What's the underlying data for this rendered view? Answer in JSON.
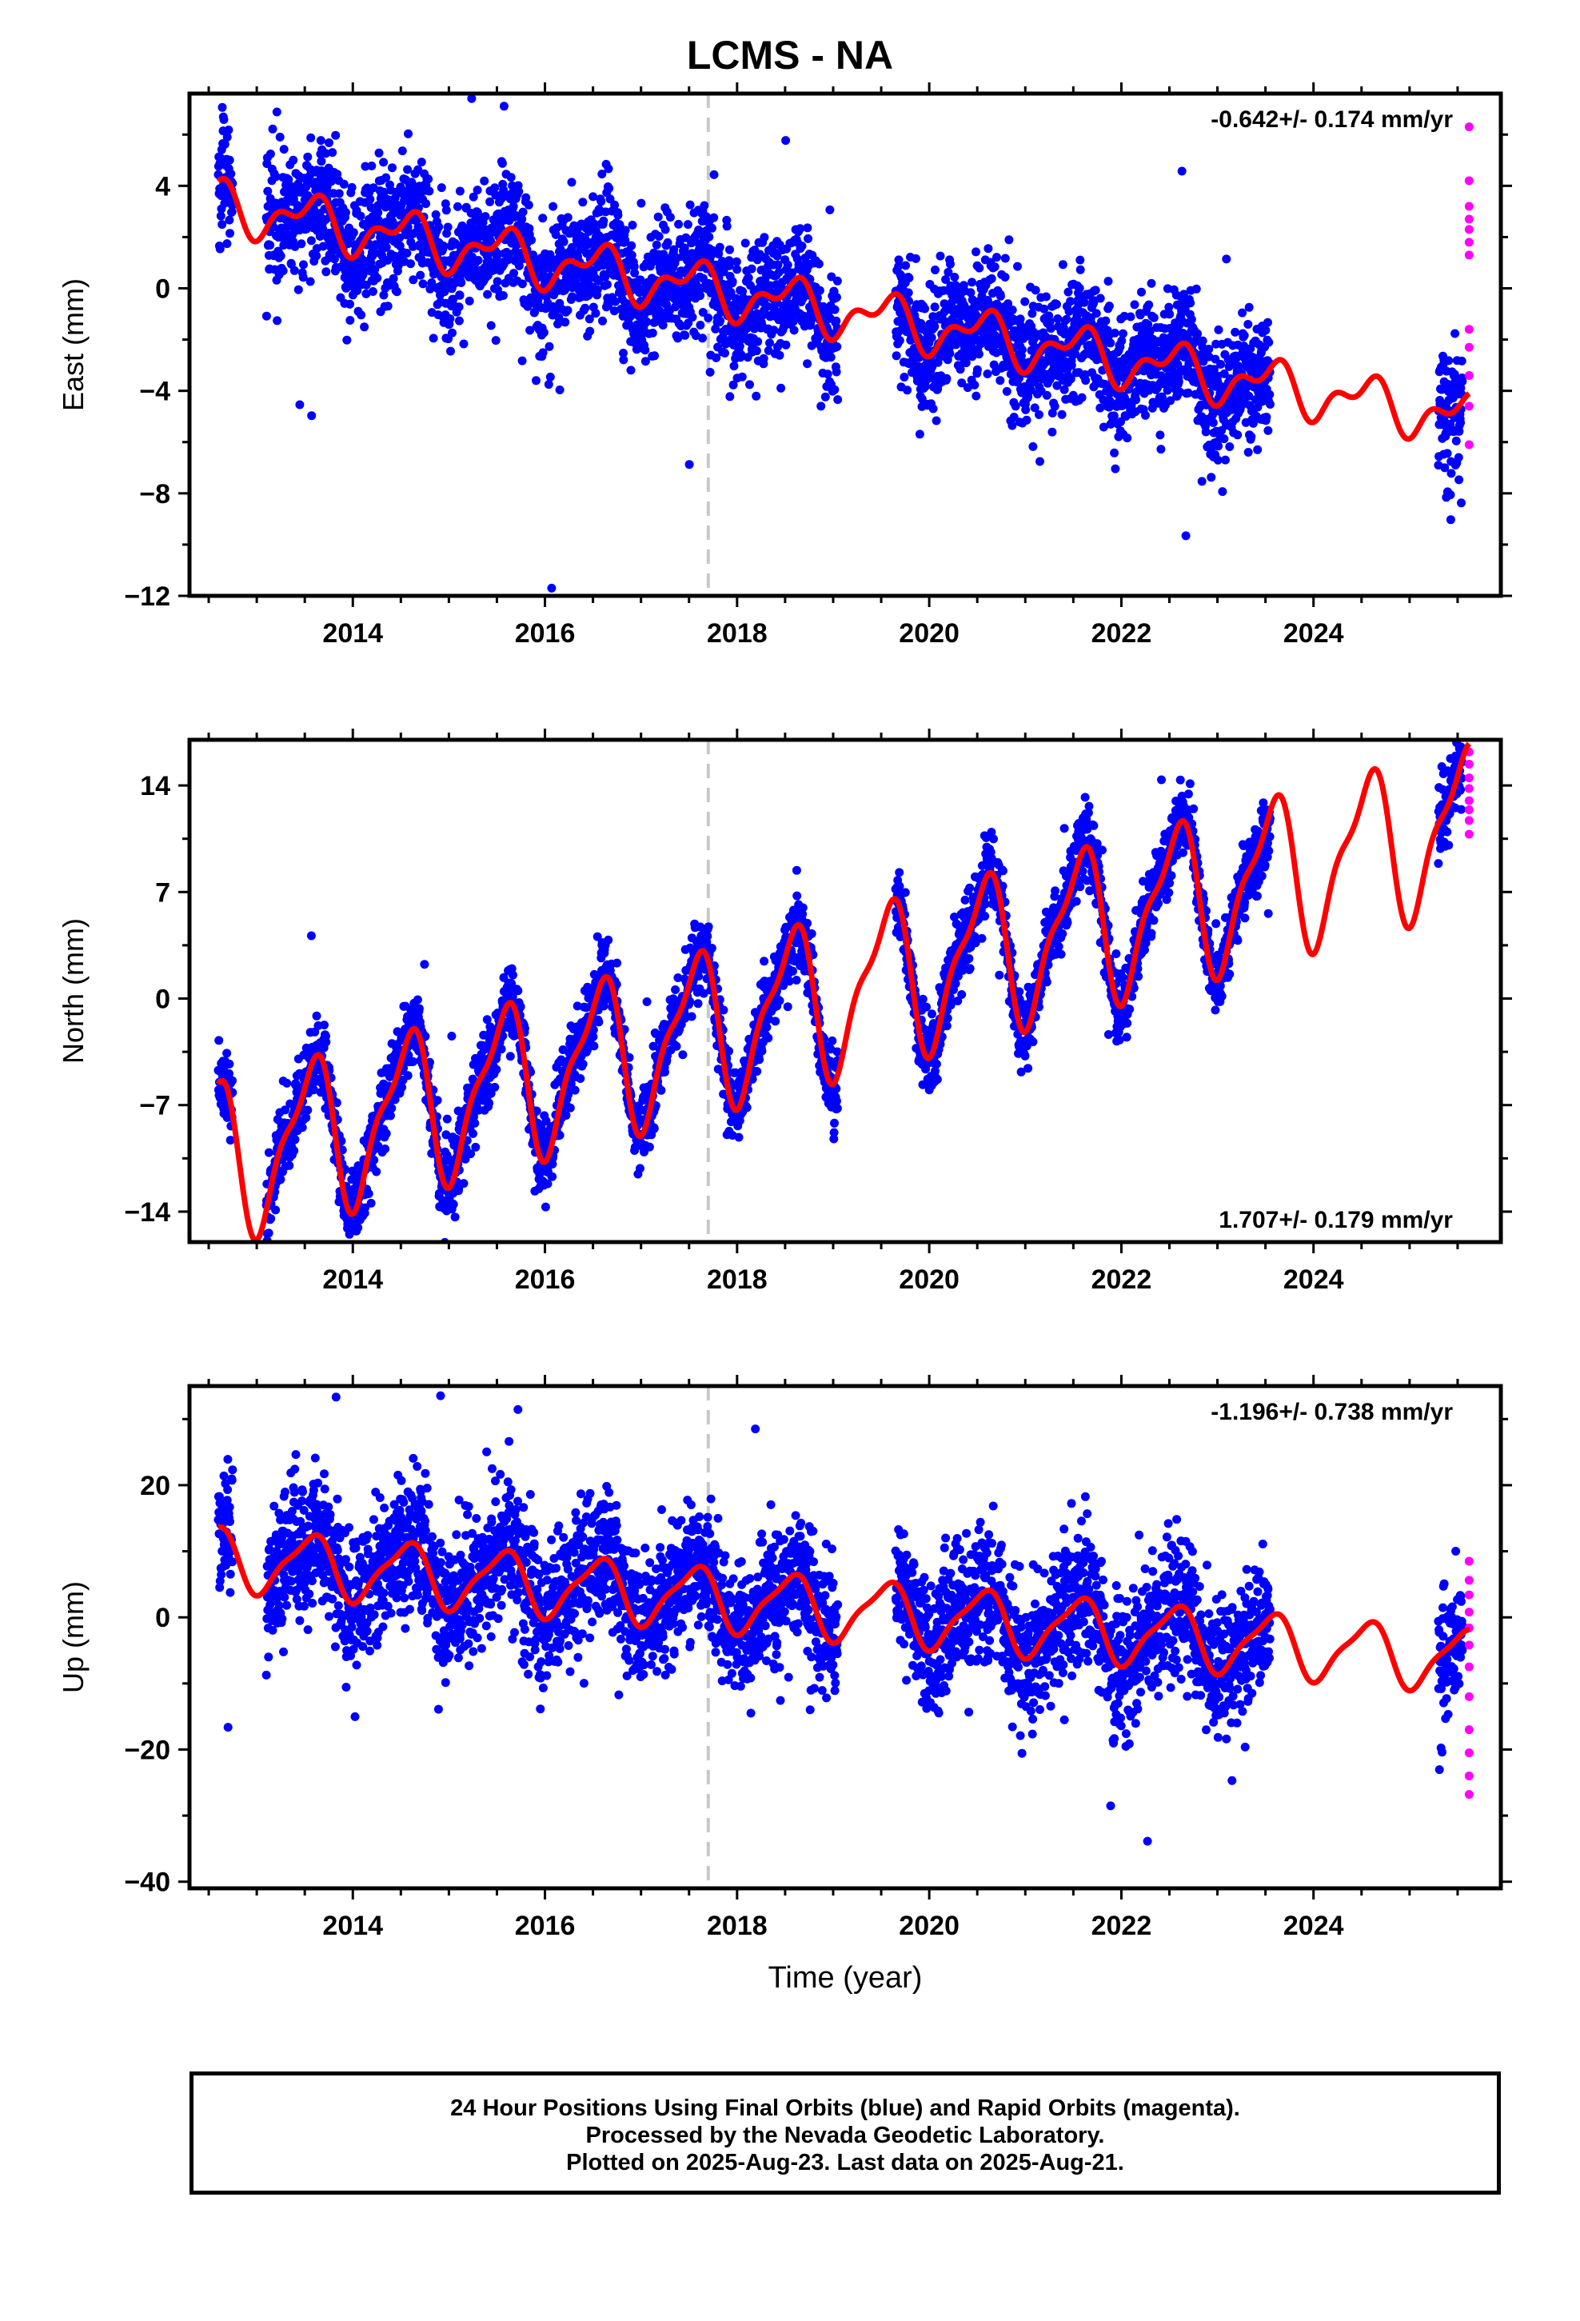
{
  "title": "LCMS - NA",
  "x_axis_label": "Time (year)",
  "footer": {
    "line1": "24 Hour Positions Using Final Orbits (blue) and Rapid Orbits (magenta).",
    "line2": "Processed by the Nevada Geodetic Laboratory.",
    "line3": "Plotted on 2025-Aug-23. Last data on 2025-Aug-21."
  },
  "colors": {
    "final_orbits": "#0000ff",
    "rapid_orbits": "#ff00ff",
    "model_fit": "#ff0000",
    "reference_line": "#c8c8c8"
  },
  "chart_data": [
    {
      "type": "scatter",
      "component": "East",
      "ylabel": "East (mm)",
      "xlim": [
        2012.3,
        2025.95
      ],
      "ylim": [
        -12,
        7.6
      ],
      "yticks": [
        -12,
        -8,
        -4,
        0,
        4
      ],
      "xticks": [
        2014,
        2016,
        2018,
        2020,
        2022,
        2024
      ],
      "rate_text": "-0.642+/- 0.174 mm/yr",
      "rate_position": "top-right",
      "reference_line_x": 2017.7,
      "series": [
        {
          "name": "Final Orbits",
          "color": "#0000ff",
          "model": {
            "offset": 3.0,
            "trend_mm_per_yr": -0.642,
            "ref_year": 2013.0,
            "annual_amp": 0.8,
            "semiannual_amp": 0.5,
            "noise": 1.2
          },
          "segments": [
            [
              2012.6,
              2012.75
            ],
            [
              2013.1,
              2019.05
            ],
            [
              2019.65,
              2023.55
            ],
            [
              2025.3,
              2025.55
            ]
          ]
        },
        {
          "name": "Rapid Orbits",
          "color": "#ff00ff",
          "points": [
            [
              2025.62,
              6.3
            ],
            [
              2025.62,
              4.2
            ],
            [
              2025.62,
              3.2
            ],
            [
              2025.62,
              2.7
            ],
            [
              2025.62,
              2.3
            ],
            [
              2025.62,
              1.8
            ],
            [
              2025.62,
              1.3
            ],
            [
              2025.62,
              -1.6
            ],
            [
              2025.62,
              -2.3
            ],
            [
              2025.62,
              -3.4
            ],
            [
              2025.62,
              -4.6
            ],
            [
              2025.62,
              -6.1
            ]
          ]
        }
      ],
      "fit": {
        "name": "Model",
        "color": "#ff0000",
        "start": 2012.6,
        "end": 2025.62
      }
    },
    {
      "type": "scatter",
      "component": "North",
      "ylabel": "North (mm)",
      "xlim": [
        2012.3,
        2025.95
      ],
      "ylim": [
        -16,
        17
      ],
      "yticks": [
        -14,
        -7,
        0,
        7,
        14
      ],
      "xticks": [
        2014,
        2016,
        2018,
        2020,
        2022,
        2024
      ],
      "rate_text": "1.707+/- 0.179 mm/yr",
      "rate_position": "bottom-right",
      "reference_line_x": 2017.7,
      "series": [
        {
          "name": "Final Orbits",
          "color": "#0000ff",
          "model": {
            "offset": -10.0,
            "trend_mm_per_yr": 1.707,
            "ref_year": 2013.0,
            "annual_amp": 4.8,
            "semiannual_amp": 1.6,
            "noise": 1.2
          },
          "segments": [
            [
              2012.6,
              2012.75
            ],
            [
              2013.1,
              2019.05
            ],
            [
              2019.65,
              2023.55
            ],
            [
              2025.3,
              2025.55
            ]
          ]
        },
        {
          "name": "Rapid Orbits",
          "color": "#ff00ff",
          "points": [
            [
              2025.62,
              16.2
            ],
            [
              2025.62,
              15.4
            ],
            [
              2025.62,
              14.5
            ],
            [
              2025.62,
              13.8
            ],
            [
              2025.62,
              13.0
            ],
            [
              2025.62,
              12.4
            ],
            [
              2025.62,
              11.7
            ],
            [
              2025.62,
              10.8
            ]
          ]
        }
      ],
      "fit": {
        "name": "Model",
        "color": "#ff0000",
        "start": 2012.6,
        "end": 2025.62
      }
    },
    {
      "type": "scatter",
      "component": "Up",
      "ylabel": "Up (mm)",
      "xlim": [
        2012.3,
        2025.95
      ],
      "ylim": [
        -41,
        35
      ],
      "yticks": [
        -40,
        -20,
        0,
        20
      ],
      "xticks": [
        2014,
        2016,
        2018,
        2020,
        2022,
        2024
      ],
      "rate_text": "-1.196+/- 0.738 mm/yr",
      "rate_position": "top-right",
      "reference_line_x": 2017.7,
      "series": [
        {
          "name": "Final Orbits",
          "color": "#0000ff",
          "model": {
            "offset": 8.5,
            "trend_mm_per_yr": -1.196,
            "ref_year": 2013.0,
            "annual_amp": 4.5,
            "semiannual_amp": 1.2,
            "noise": 5.0
          },
          "segments": [
            [
              2012.6,
              2012.75
            ],
            [
              2013.1,
              2019.05
            ],
            [
              2019.65,
              2023.55
            ],
            [
              2025.3,
              2025.55
            ]
          ]
        },
        {
          "name": "Rapid Orbits",
          "color": "#ff00ff",
          "points": [
            [
              2025.62,
              8.5
            ],
            [
              2025.62,
              5.6
            ],
            [
              2025.62,
              3.4
            ],
            [
              2025.62,
              0.8
            ],
            [
              2025.62,
              -1.6
            ],
            [
              2025.62,
              -4.2
            ],
            [
              2025.62,
              -7.5
            ],
            [
              2025.62,
              -12.0
            ],
            [
              2025.62,
              -17.0
            ],
            [
              2025.62,
              -20.5
            ],
            [
              2025.62,
              -24.0
            ],
            [
              2025.62,
              -26.8
            ]
          ]
        }
      ],
      "fit": {
        "name": "Model",
        "color": "#ff0000",
        "start": 2012.6,
        "end": 2025.62
      }
    }
  ]
}
